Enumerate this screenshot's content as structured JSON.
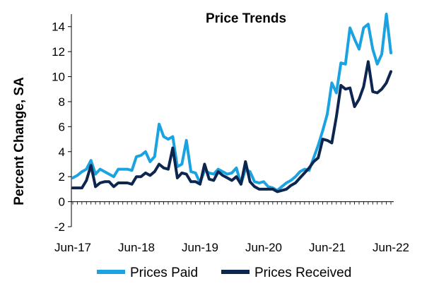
{
  "chart_data": {
    "type": "line",
    "title": "Price Trends",
    "xlabel": "",
    "ylabel": "Percent Change, SA",
    "ylim": [
      -2,
      15
    ],
    "yticks": [
      -2,
      0,
      2,
      4,
      6,
      8,
      10,
      12,
      14
    ],
    "x_tick_labels": [
      "Jun-17",
      "Jun-18",
      "Jun-19",
      "Jun-20",
      "Jun-21",
      "Jun-22"
    ],
    "x_start": "Jun-17",
    "x_end": "Jun-22",
    "grid": false,
    "legend_position": "bottom",
    "series": [
      {
        "name": "Prices Paid",
        "color": "#1aa3e0",
        "values": [
          1.9,
          2.1,
          2.4,
          2.6,
          3.3,
          2.2,
          2.6,
          2.4,
          2.2,
          2.0,
          2.6,
          2.6,
          2.6,
          2.5,
          3.6,
          3.7,
          4.0,
          3.2,
          3.6,
          6.2,
          5.2,
          5.0,
          5.2,
          2.8,
          3.0,
          4.9,
          2.4,
          2.3,
          1.5,
          2.5,
          2.3,
          2.2,
          2.6,
          2.4,
          2.2,
          2.3,
          2.7,
          1.4,
          2.6,
          2.4,
          1.6,
          1.5,
          1.6,
          1.2,
          1.1,
          0.9,
          1.2,
          1.5,
          1.7,
          2.0,
          2.4,
          2.6,
          2.5,
          3.5,
          4.5,
          5.7,
          7.0,
          9.5,
          8.7,
          11.1,
          11.0,
          13.9,
          13.0,
          12.2,
          13.9,
          14.2,
          12.2,
          11.0,
          11.8,
          15.0,
          11.9
        ]
      },
      {
        "name": "Prices Received",
        "color": "#0d2650",
        "values": [
          1.1,
          1.1,
          1.1,
          1.7,
          2.9,
          1.2,
          1.5,
          1.6,
          1.6,
          1.2,
          1.5,
          1.5,
          1.5,
          1.4,
          2.0,
          2.0,
          2.3,
          2.1,
          2.4,
          3.0,
          2.7,
          2.6,
          4.3,
          1.9,
          2.3,
          2.2,
          1.6,
          1.6,
          1.4,
          3.0,
          1.8,
          1.7,
          2.4,
          2.1,
          1.9,
          1.7,
          2.0,
          1.4,
          3.2,
          1.6,
          1.2,
          1.0,
          1.0,
          1.0,
          1.0,
          0.8,
          0.9,
          1.0,
          1.3,
          1.5,
          1.9,
          2.3,
          2.7,
          3.2,
          3.5,
          5.0,
          4.9,
          4.7,
          6.8,
          9.3,
          9.0,
          9.1,
          7.6,
          8.2,
          9.2,
          11.2,
          8.8,
          8.7,
          9.0,
          9.5,
          10.4
        ]
      }
    ]
  }
}
